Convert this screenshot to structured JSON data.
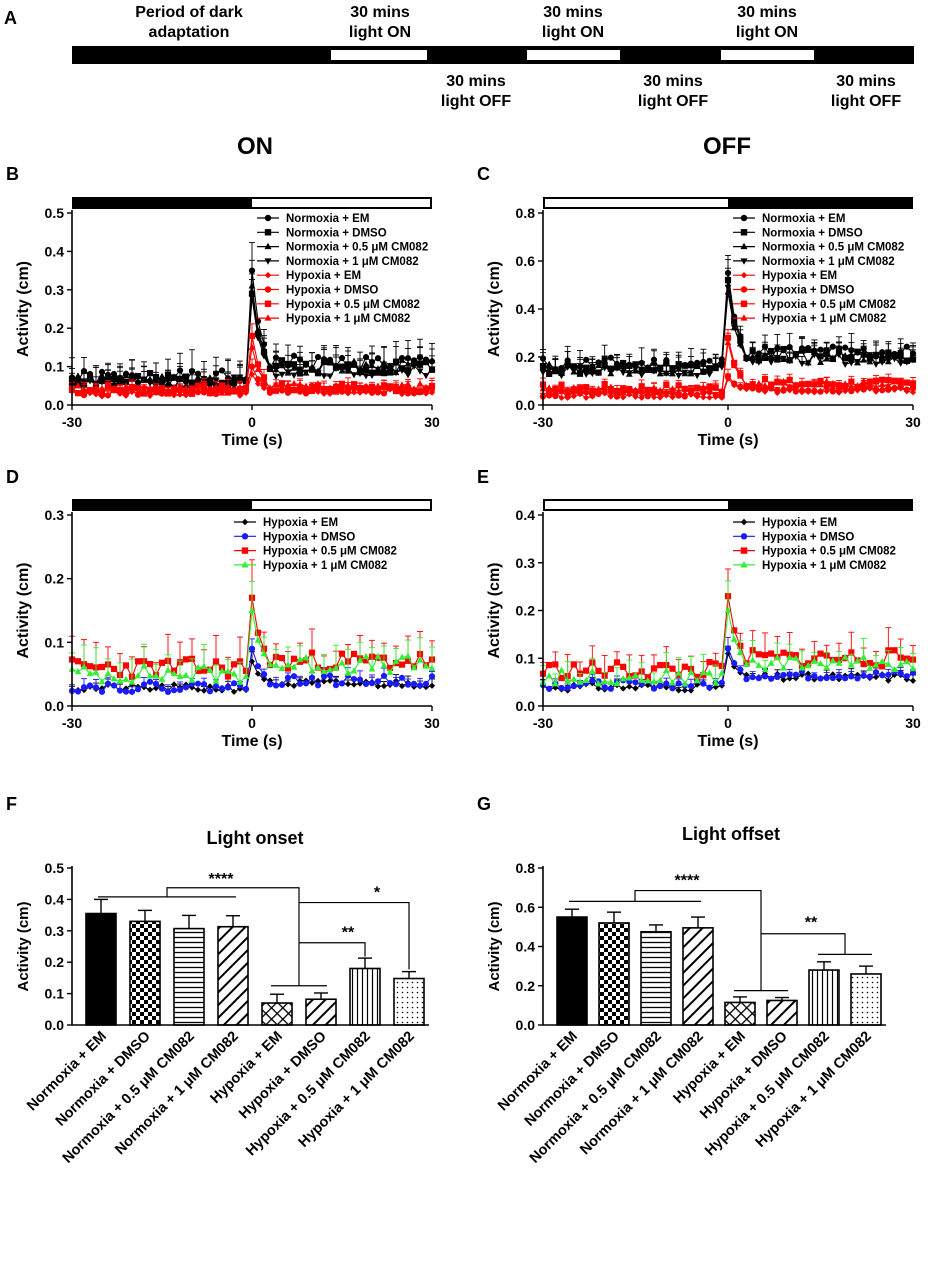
{
  "colors": {
    "black": "#000000",
    "red": "#ff0000",
    "blue": "#1a1aff",
    "green": "#33ee33",
    "white": "#ffffff"
  },
  "schedule": {
    "panel_letter": "A",
    "dark_label": "Period of dark adaptation",
    "on_labels": [
      "30 mins light ON",
      "30 mins light ON",
      "30 mins light ON"
    ],
    "off_labels": [
      "30 mins light OFF",
      "30 mins light OFF",
      "30 mins light OFF"
    ]
  },
  "column_titles": {
    "on": "ON",
    "off": "OFF"
  },
  "chart_data": [
    {
      "id": "B",
      "type": "line",
      "panel_letter": "B",
      "light_bar": "dark-then-light",
      "xlabel": "Time (s)",
      "ylabel": "Activity (cm)",
      "xlim": [
        -30,
        30
      ],
      "ylim": [
        0,
        0.5
      ],
      "xticks": [
        "-30",
        "0",
        "30"
      ],
      "yticks": [
        "0.0",
        "0.1",
        "0.2",
        "0.3",
        "0.4",
        "0.5"
      ],
      "series": [
        {
          "name": "Normoxia + EM",
          "color": "#000000",
          "marker": "circle",
          "base": 0.07,
          "noise": 0.02,
          "peak": 0.35,
          "after": 0.11,
          "err": 0.04,
          "seed": 1
        },
        {
          "name": "Normoxia + DMSO",
          "color": "#000000",
          "marker": "square",
          "base": 0.065,
          "noise": 0.018,
          "peak": 0.29,
          "after": 0.1,
          "err": 0.035,
          "seed": 2
        },
        {
          "name": "Normoxia + 0.5 μM CM082",
          "color": "#000000",
          "marker": "triangle-up",
          "base": 0.06,
          "noise": 0.018,
          "peak": 0.31,
          "after": 0.1,
          "err": 0.035,
          "seed": 3
        },
        {
          "name": "Normoxia + 1 μM CM082",
          "color": "#000000",
          "marker": "triangle-down",
          "base": 0.06,
          "noise": 0.015,
          "peak": 0.28,
          "after": 0.09,
          "err": 0.03,
          "seed": 4
        },
        {
          "name": "Hypoxia + EM",
          "color": "#ff0000",
          "marker": "diamond",
          "base": 0.03,
          "noise": 0.008,
          "peak": 0.08,
          "after": 0.035,
          "err": 0.01,
          "seed": 5
        },
        {
          "name": "Hypoxia + DMSO",
          "color": "#ff0000",
          "marker": "circle",
          "base": 0.035,
          "noise": 0.01,
          "peak": 0.1,
          "after": 0.04,
          "err": 0.012,
          "seed": 6
        },
        {
          "name": "Hypoxia + 0.5 μM CM082",
          "color": "#ff0000",
          "marker": "square",
          "base": 0.04,
          "noise": 0.012,
          "peak": 0.18,
          "after": 0.045,
          "err": 0.015,
          "seed": 7
        },
        {
          "name": "Hypoxia + 1 μM CM082",
          "color": "#ff0000",
          "marker": "triangle-up",
          "base": 0.04,
          "noise": 0.012,
          "peak": 0.15,
          "after": 0.045,
          "err": 0.015,
          "seed": 8
        }
      ]
    },
    {
      "id": "C",
      "type": "line",
      "panel_letter": "C",
      "light_bar": "light-then-dark",
      "xlabel": "Time (s)",
      "ylabel": "Activity (cm)",
      "xlim": [
        -30,
        30
      ],
      "ylim": [
        0,
        0.8
      ],
      "xticks": [
        "-30",
        "0",
        "30"
      ],
      "yticks": [
        "0.0",
        "0.2",
        "0.4",
        "0.6",
        "0.8"
      ],
      "series": [
        {
          "name": "Normoxia + EM",
          "color": "#000000",
          "marker": "circle",
          "base": 0.17,
          "noise": 0.03,
          "peak": 0.55,
          "after": 0.22,
          "err": 0.05,
          "seed": 11
        },
        {
          "name": "Normoxia + DMSO",
          "color": "#000000",
          "marker": "square",
          "base": 0.15,
          "noise": 0.025,
          "peak": 0.52,
          "after": 0.21,
          "err": 0.045,
          "seed": 12
        },
        {
          "name": "Normoxia + 0.5 μM CM082",
          "color": "#000000",
          "marker": "triangle-up",
          "base": 0.15,
          "noise": 0.025,
          "peak": 0.47,
          "after": 0.2,
          "err": 0.04,
          "seed": 13
        },
        {
          "name": "Normoxia + 1 μM CM082",
          "color": "#000000",
          "marker": "triangle-down",
          "base": 0.14,
          "noise": 0.02,
          "peak": 0.49,
          "after": 0.19,
          "err": 0.04,
          "seed": 14
        },
        {
          "name": "Hypoxia + EM",
          "color": "#ff0000",
          "marker": "diamond",
          "base": 0.04,
          "noise": 0.01,
          "peak": 0.11,
          "after": 0.06,
          "err": 0.012,
          "seed": 15
        },
        {
          "name": "Hypoxia + DMSO",
          "color": "#ff0000",
          "marker": "circle",
          "base": 0.045,
          "noise": 0.012,
          "peak": 0.12,
          "after": 0.065,
          "err": 0.014,
          "seed": 16
        },
        {
          "name": "Hypoxia + 0.5 μM CM082",
          "color": "#ff0000",
          "marker": "square",
          "base": 0.07,
          "noise": 0.018,
          "peak": 0.28,
          "after": 0.09,
          "err": 0.02,
          "seed": 17
        },
        {
          "name": "Hypoxia + 1 μM CM082",
          "color": "#ff0000",
          "marker": "triangle-up",
          "base": 0.06,
          "noise": 0.015,
          "peak": 0.26,
          "after": 0.085,
          "err": 0.018,
          "seed": 18
        }
      ]
    },
    {
      "id": "D",
      "type": "line",
      "panel_letter": "D",
      "light_bar": "dark-then-light",
      "xlabel": "Time (s)",
      "ylabel": "Activity (cm)",
      "xlim": [
        -30,
        30
      ],
      "ylim": [
        0,
        0.3
      ],
      "xticks": [
        "-30",
        "0",
        "30"
      ],
      "yticks": [
        "0.0",
        "0.1",
        "0.2",
        "0.3"
      ],
      "series": [
        {
          "name": "Hypoxia + EM",
          "color": "#000000",
          "marker": "diamond",
          "base": 0.028,
          "noise": 0.006,
          "peak": 0.07,
          "after": 0.035,
          "err": 0.008,
          "seed": 21
        },
        {
          "name": "Hypoxia + DMSO",
          "color": "#1a1aff",
          "marker": "circle",
          "base": 0.03,
          "noise": 0.008,
          "peak": 0.09,
          "after": 0.04,
          "err": 0.01,
          "seed": 22
        },
        {
          "name": "Hypoxia + 0.5 μM CM082",
          "color": "#ff0000",
          "marker": "square",
          "base": 0.06,
          "noise": 0.015,
          "peak": 0.17,
          "after": 0.07,
          "err": 0.03,
          "seed": 23
        },
        {
          "name": "Hypoxia + 1 μM CM082",
          "color": "#33ee33",
          "marker": "triangle-up",
          "base": 0.05,
          "noise": 0.014,
          "peak": 0.15,
          "after": 0.065,
          "err": 0.028,
          "seed": 24
        }
      ]
    },
    {
      "id": "E",
      "type": "line",
      "panel_letter": "E",
      "light_bar": "light-then-dark",
      "xlabel": "Time (s)",
      "ylabel": "Activity (cm)",
      "xlim": [
        -30,
        30
      ],
      "ylim": [
        0,
        0.4
      ],
      "xticks": [
        "-30",
        "0",
        "30"
      ],
      "yticks": [
        "0.0",
        "0.1",
        "0.2",
        "0.3",
        "0.4"
      ],
      "series": [
        {
          "name": "Hypoxia + EM",
          "color": "#000000",
          "marker": "diamond",
          "base": 0.04,
          "noise": 0.008,
          "peak": 0.11,
          "after": 0.06,
          "err": 0.01,
          "seed": 31
        },
        {
          "name": "Hypoxia + DMSO",
          "color": "#1a1aff",
          "marker": "circle",
          "base": 0.045,
          "noise": 0.009,
          "peak": 0.12,
          "after": 0.065,
          "err": 0.012,
          "seed": 32
        },
        {
          "name": "Hypoxia + 0.5 μM CM082",
          "color": "#ff0000",
          "marker": "square",
          "base": 0.075,
          "noise": 0.018,
          "peak": 0.23,
          "after": 0.1,
          "err": 0.035,
          "seed": 33
        },
        {
          "name": "Hypoxia + 1 μM CM082",
          "color": "#33ee33",
          "marker": "triangle-up",
          "base": 0.06,
          "noise": 0.015,
          "peak": 0.2,
          "after": 0.09,
          "err": 0.03,
          "seed": 34
        }
      ]
    },
    {
      "id": "F",
      "type": "bar",
      "panel_letter": "F",
      "title": "Light onset",
      "ylabel": "Activity (cm)",
      "ylim": [
        0,
        0.5
      ],
      "yticks": [
        "0.0",
        "0.1",
        "0.2",
        "0.3",
        "0.4",
        "0.5"
      ],
      "categories": [
        "Normoxia + EM",
        "Normoxia + DMSO",
        "Normoxia + 0.5 μM CM082",
        "Normoxia + 1 μM CM082",
        "Hypoxia + EM",
        "Hypoxia + DMSO",
        "Hypoxia + 0.5 μM CM082",
        "Hypoxia + 1 μM CM082"
      ],
      "values": [
        0.355,
        0.33,
        0.307,
        0.313,
        0.07,
        0.082,
        0.18,
        0.148
      ],
      "errors": [
        0.045,
        0.035,
        0.042,
        0.035,
        0.028,
        0.02,
        0.033,
        0.022
      ],
      "patterns": [
        "solid",
        "checker",
        "hlines",
        "diag",
        "crosshatch",
        "diag",
        "vlines",
        "dots"
      ],
      "significance": [
        {
          "label": "****",
          "from": "Normoxia group",
          "to": "Hypoxia group"
        },
        {
          "label": "**",
          "from": "Hypoxia group",
          "to": "Hypoxia + 0.5 μM CM082"
        },
        {
          "label": "*",
          "from": "Hypoxia group",
          "to": "Hypoxia + 1 μM CM082"
        }
      ]
    },
    {
      "id": "G",
      "type": "bar",
      "panel_letter": "G",
      "title": "Light offset",
      "ylabel": "Activity (cm)",
      "ylim": [
        0,
        0.8
      ],
      "yticks": [
        "0.0",
        "0.2",
        "0.4",
        "0.6",
        "0.8"
      ],
      "categories": [
        "Normoxia + EM",
        "Normoxia + DMSO",
        "Normoxia + 0.5 μM CM082",
        "Normoxia + 1 μM CM082",
        "Hypoxia + EM",
        "Hypoxia + DMSO",
        "Hypoxia + 0.5 μM CM082",
        "Hypoxia + 1 μM CM082"
      ],
      "values": [
        0.55,
        0.52,
        0.475,
        0.495,
        0.115,
        0.125,
        0.28,
        0.26
      ],
      "errors": [
        0.04,
        0.055,
        0.035,
        0.055,
        0.028,
        0.015,
        0.042,
        0.04
      ],
      "patterns": [
        "solid",
        "checker",
        "hlines",
        "diag",
        "crosshatch",
        "diag",
        "vlines",
        "dots"
      ],
      "significance": [
        {
          "label": "****",
          "from": "Normoxia group",
          "to": "Hypoxia group"
        },
        {
          "label": "**",
          "from": "Hypoxia group",
          "to": "Hypoxia CM082 group"
        }
      ]
    }
  ]
}
